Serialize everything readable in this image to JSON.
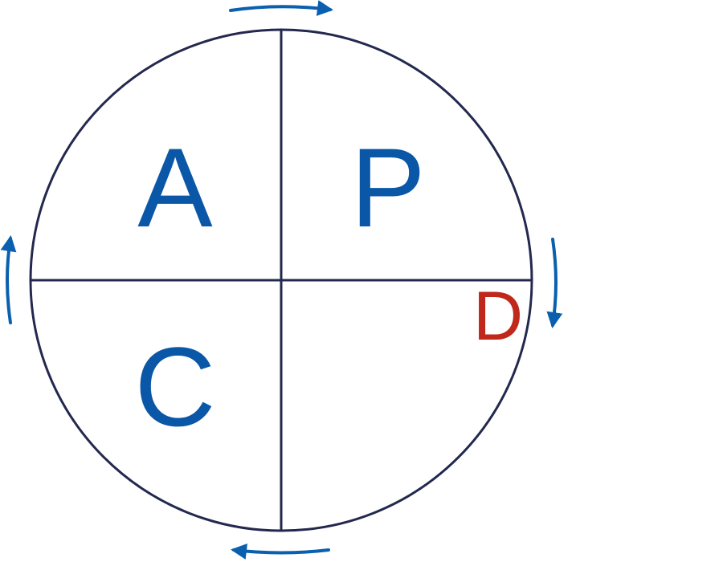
{
  "quadrants": {
    "top_left": "A",
    "top_right": "P",
    "bottom_left": "C",
    "bottom_right": "D"
  },
  "colors": {
    "circle_stroke": "#23284f",
    "letter_blue": "#0a57a8",
    "letter_red": "#c0281c",
    "arrow_blue": "#0a5fae"
  },
  "cycle_direction": "clockwise"
}
